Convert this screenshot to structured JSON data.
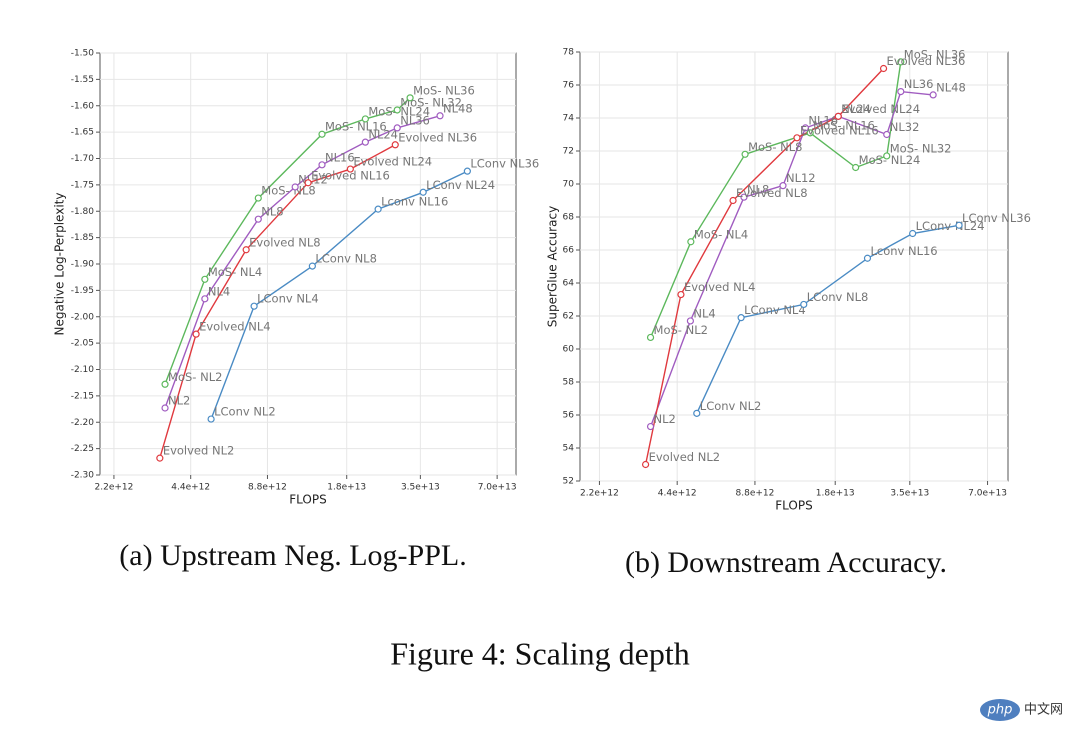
{
  "chart_data": [
    {
      "type": "line",
      "xscale": "log",
      "grid": true,
      "xlabel": "FLOPS",
      "ylabel": "Negative Log-Perplexity",
      "caption": "(a) Upstream Neg. Log-PPL.",
      "xlim": [
        1940000000000.0,
        83000000000000.0
      ],
      "xticks": [
        {
          "value": 2200000000000.0,
          "label": "2.2e+12"
        },
        {
          "value": 4400000000000.0,
          "label": "4.4e+12"
        },
        {
          "value": 8800000000000.0,
          "label": "8.8e+12"
        },
        {
          "value": 18000000000000.0,
          "label": "1.8e+13"
        },
        {
          "value": 35000000000000.0,
          "label": "3.5e+13"
        },
        {
          "value": 70000000000000.0,
          "label": "7.0e+13"
        }
      ],
      "ylim": [
        -2.3,
        -1.5
      ],
      "yticks": [
        {
          "value": -1.5,
          "label": "-1.50"
        },
        -1.55,
        {
          "value": -1.6,
          "label": "-1.60"
        },
        -1.65,
        {
          "value": -1.7,
          "label": "-1.70"
        },
        -1.75,
        {
          "value": -1.8,
          "label": "-1.80"
        },
        -1.85,
        {
          "value": -1.9,
          "label": "-1.90"
        },
        -1.95,
        {
          "value": -2.0,
          "label": "-2.00"
        },
        -2.05,
        {
          "value": -2.1,
          "label": "-2.10"
        },
        -2.15,
        {
          "value": -2.2,
          "label": "-2.20"
        },
        -2.25,
        {
          "value": -2.3,
          "label": "-2.30"
        }
      ],
      "series": [
        {
          "color": "#5cb85c",
          "x": [
            3490000000000.0,
            5000000000000.0,
            8100000000000.0,
            14400000000000.0,
            21300000000000.0,
            28400000000000.0,
            31900000000000.0
          ],
          "values": [
            -2.128,
            -1.929,
            -1.775,
            -1.654,
            -1.625,
            -1.608,
            -1.585
          ],
          "point_labels": [
            "MoS- NL2",
            "MoS- NL4",
            "MoS- NL8",
            "MoS- NL16",
            "MoS- NL24",
            "MoS- NL32",
            "MoS- NL36"
          ]
        },
        {
          "color": "#a05cc0",
          "x": [
            3490000000000.0,
            5000000000000.0,
            8100000000000.0,
            11300000000000.0,
            14400000000000.0,
            21300000000000.0,
            28400000000000.0,
            41800000000000.0
          ],
          "values": [
            -2.173,
            -1.966,
            -1.815,
            -1.754,
            -1.712,
            -1.669,
            -1.642,
            -1.619
          ],
          "point_labels": [
            "NL2",
            "NL4",
            "NL8",
            "NL12",
            "NL16",
            "NL24",
            "NL36",
            "NL48"
          ]
        },
        {
          "color": "#e0393e",
          "x": [
            3330000000000.0,
            4620000000000.0,
            7260000000000.0,
            12700000000000.0,
            18600000000000.0,
            27900000000000.0
          ],
          "values": [
            -2.268,
            -2.033,
            -1.873,
            -1.746,
            -1.72,
            -1.674
          ],
          "point_labels": [
            "Evolved NL2",
            "Evolved NL4",
            "Evolved NL8",
            "Evolved NL16",
            "Evolved NL24",
            "Evolved NL36"
          ]
        },
        {
          "color": "#4a8bc4",
          "x": [
            5290000000000.0,
            7800000000000.0,
            13200000000000.0,
            23900000000000.0,
            35900000000000.0,
            53500000000000.0
          ],
          "values": [
            -2.194,
            -1.98,
            -1.904,
            -1.796,
            -1.764,
            -1.724
          ],
          "point_labels": [
            "LConv NL2",
            "LConv NL4",
            "LConv NL8",
            "Lconv NL16",
            "LConv NL24",
            "LConv NL36"
          ]
        }
      ]
    },
    {
      "type": "line",
      "xscale": "log",
      "grid": true,
      "xlabel": "FLOPS",
      "ylabel": "SuperGlue Accuracy",
      "caption": "(b) Downstream Accuracy.",
      "xlim": [
        1850000000000.0,
        84000000000000.0
      ],
      "xticks": [
        {
          "value": 2200000000000.0,
          "label": "2.2e+12"
        },
        {
          "value": 4400000000000.0,
          "label": "4.4e+12"
        },
        {
          "value": 8800000000000.0,
          "label": "8.8e+12"
        },
        {
          "value": 18000000000000.0,
          "label": "1.8e+13"
        },
        {
          "value": 35000000000000.0,
          "label": "3.5e+13"
        },
        {
          "value": 70000000000000.0,
          "label": "7.0e+13"
        }
      ],
      "ylim": [
        52,
        78
      ],
      "yticks": [
        52,
        54,
        56,
        58,
        60,
        62,
        64,
        66,
        68,
        70,
        72,
        74,
        76,
        78
      ],
      "series": [
        {
          "color": "#5cb85c",
          "x": [
            3470000000000.0,
            4970000000000.0,
            8060000000000.0,
            14400000000000.0,
            21600000000000.0,
            28500000000000.0,
            32300000000000.0
          ],
          "values": [
            60.7,
            66.5,
            71.8,
            73.1,
            71.0,
            71.7,
            77.4
          ],
          "point_labels": [
            "MoS- NL2",
            "MoS- NL4",
            "MoS- NL8",
            "MoS- NL16",
            "MoS- NL24",
            "MoS- NL32",
            "MoS- NL36"
          ]
        },
        {
          "color": "#a05cc0",
          "x": [
            3470000000000.0,
            4950000000000.0,
            7980000000000.0,
            11300000000000.0,
            13800000000000.0,
            18500000000000.0,
            28500000000000.0,
            32300000000000.0,
            43100000000000.0
          ],
          "values": [
            55.3,
            61.7,
            69.2,
            69.9,
            73.4,
            74.1,
            73.0,
            75.6,
            75.4
          ],
          "point_labels": [
            "NL2",
            "NL4",
            "NL8",
            "NL12",
            "NL16",
            "NL24",
            "NL32",
            "NL36",
            "NL48"
          ]
        },
        {
          "color": "#e0393e",
          "x": [
            3320000000000.0,
            4550000000000.0,
            7240000000000.0,
            12800000000000.0,
            18500000000000.0,
            27700000000000.0
          ],
          "values": [
            53.0,
            63.3,
            69.0,
            72.8,
            74.1,
            77.0
          ],
          "point_labels": [
            "Evolved NL2",
            "Evolved NL4",
            "Evolved NL8",
            "Evolved NL16",
            "Evolved NL24",
            "Evolved NL36"
          ]
        },
        {
          "color": "#4a8bc4",
          "x": [
            5240000000000.0,
            7780000000000.0,
            13600000000000.0,
            24000000000000.0,
            35900000000000.0,
            54300000000000.0
          ],
          "values": [
            56.1,
            61.9,
            62.7,
            65.5,
            67.0,
            67.5
          ],
          "point_labels": [
            "LConv NL2",
            "LConv NL4",
            "LConv NL8",
            "Lconv NL16",
            "LConv NL24",
            "LConv NL36"
          ]
        }
      ]
    }
  ],
  "figure_caption": "Figure 4: Scaling depth",
  "watermark": {
    "badge": "php",
    "text": "中文网"
  }
}
